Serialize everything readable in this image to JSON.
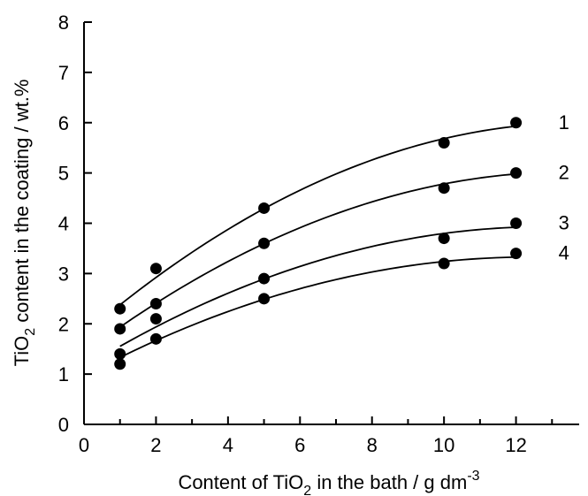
{
  "chart_data": {
    "type": "scatter",
    "title": "",
    "xlabel": {
      "prefix": "Content of TiO",
      "sub": "2",
      "suffix": " in the bath / g dm",
      "sup": "-3"
    },
    "ylabel": {
      "prefix": "TiO",
      "sub": "2",
      "suffix": " content in the coating / wt.%"
    },
    "xlim": [
      0,
      14
    ],
    "ylim": [
      0,
      8
    ],
    "xticks": [
      "0",
      "2",
      "4",
      "6",
      "8",
      "10",
      "12"
    ],
    "yticks": [
      "0",
      "1",
      "2",
      "3",
      "4",
      "5",
      "6",
      "7",
      "8"
    ],
    "grid": false,
    "x": [
      1,
      2,
      5,
      10,
      12
    ],
    "series": [
      {
        "name": "1",
        "values": [
          2.3,
          3.1,
          4.3,
          5.6,
          6.0
        ],
        "fit": [
          2.35,
          2.95,
          4.3,
          5.65,
          5.95
        ]
      },
      {
        "name": "2",
        "values": [
          1.9,
          2.4,
          3.6,
          4.7,
          5.0
        ],
        "fit": [
          1.9,
          2.45,
          3.6,
          4.75,
          5.0
        ]
      },
      {
        "name": "3",
        "values": [
          1.4,
          2.1,
          2.9,
          3.7,
          4.0
        ],
        "fit": [
          1.5,
          2.0,
          2.9,
          3.75,
          3.95
        ]
      },
      {
        "name": "4",
        "values": [
          1.2,
          1.7,
          2.5,
          3.2,
          3.4
        ],
        "fit": [
          1.3,
          1.7,
          2.5,
          3.2,
          3.35
        ]
      }
    ],
    "marker_color": "#000000",
    "line_color": "#000000"
  }
}
